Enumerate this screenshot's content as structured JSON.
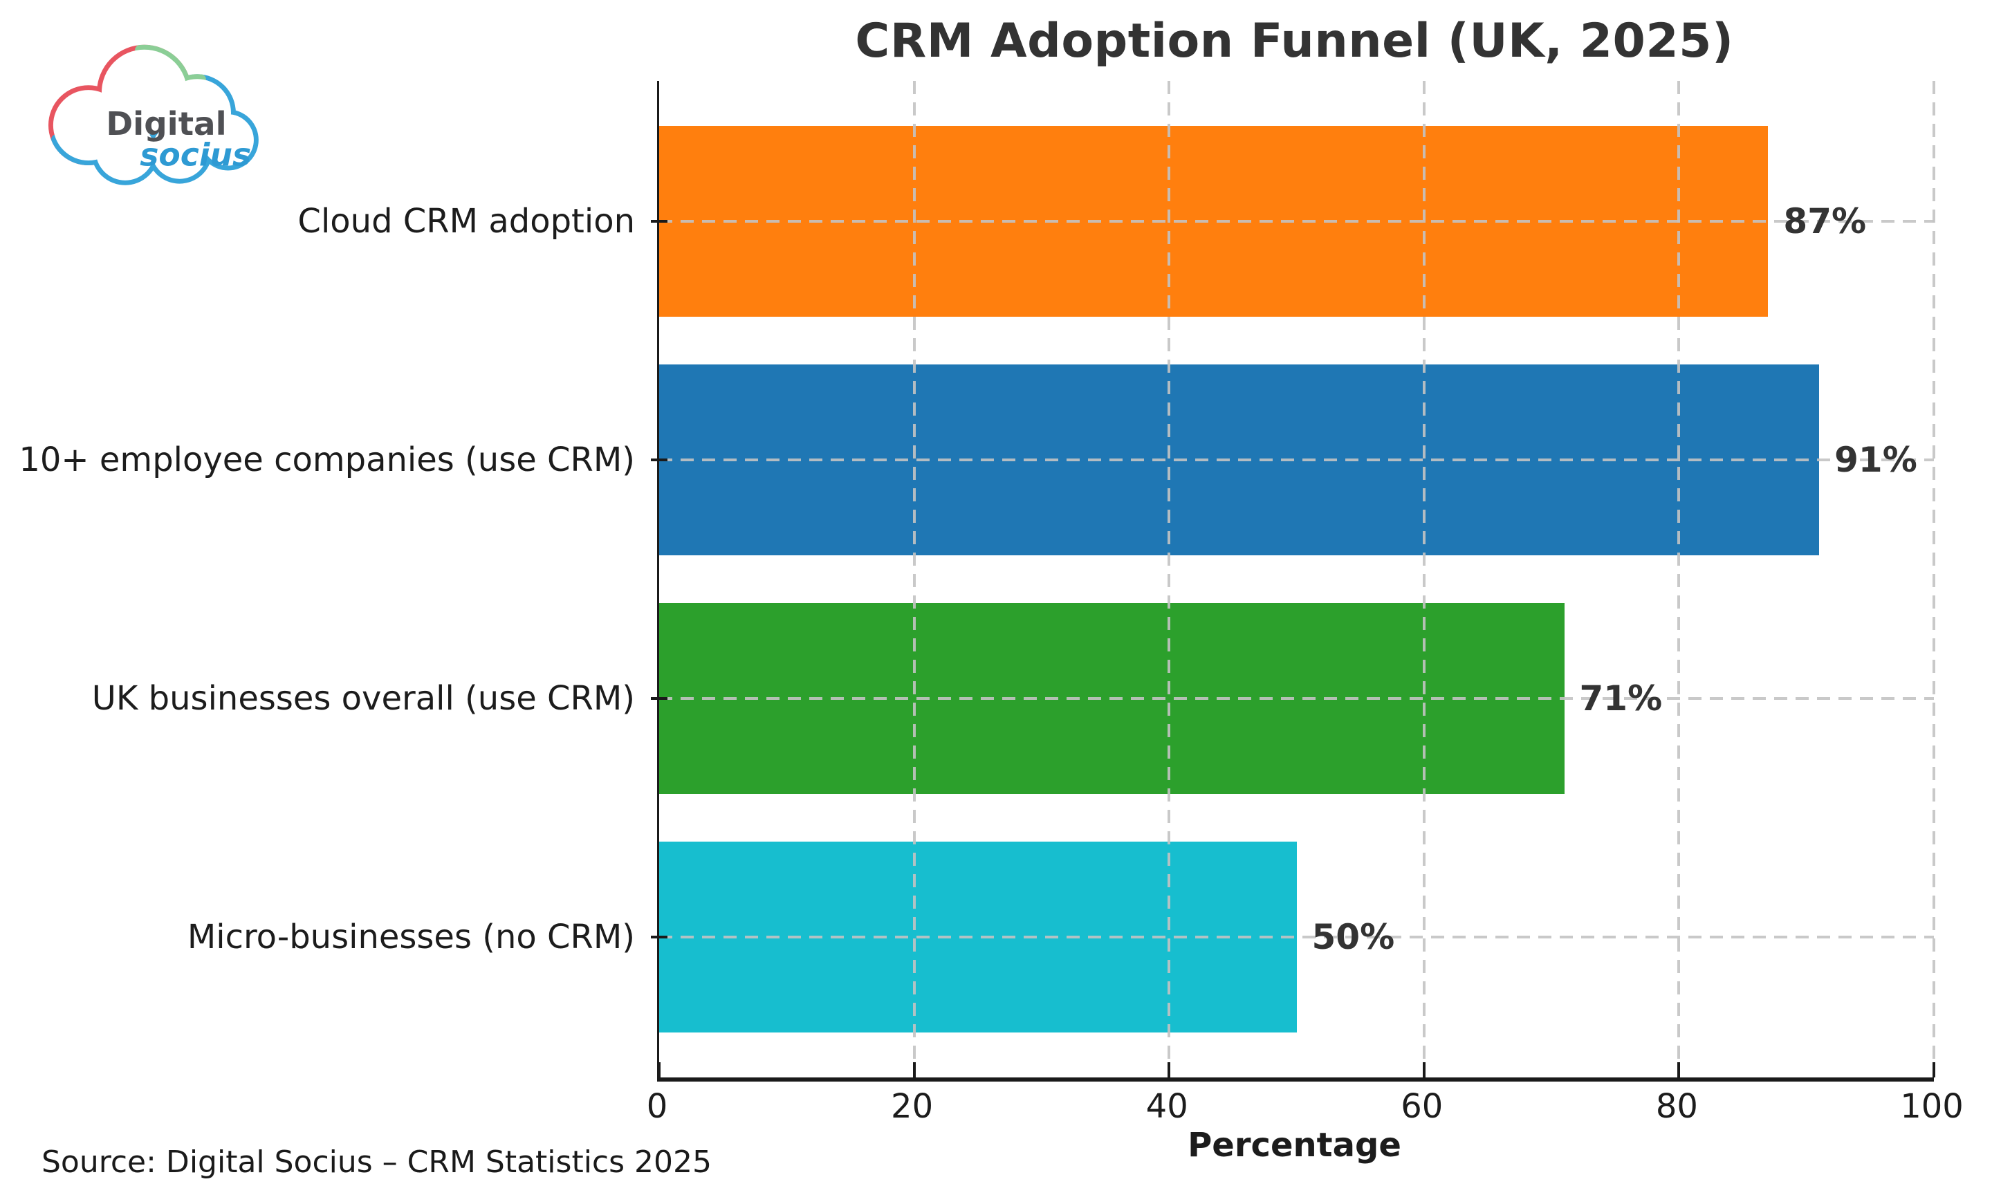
{
  "title": "CRM Adoption Funnel (UK, 2025)",
  "logo": {
    "text_primary": "Digital",
    "text_secondary": "socius",
    "colors": {
      "red": "#e85560",
      "green": "#8bce96",
      "blue": "#38a5da",
      "text_dark": "#4f5054",
      "text_blue": "#2e9ad3"
    }
  },
  "chart_data": {
    "type": "bar",
    "orientation": "horizontal",
    "title": "CRM Adoption Funnel (UK, 2025)",
    "categories": [
      "Cloud CRM adoption",
      "10+ employee companies (use CRM)",
      "UK businesses overall (use CRM)",
      "Micro-businesses (no CRM)"
    ],
    "values": [
      87,
      91,
      71,
      50
    ],
    "value_labels": [
      "87%",
      "91%",
      "71%",
      "50%"
    ],
    "bar_colors": [
      "#ff7f0e",
      "#1f77b4",
      "#2ca02c",
      "#17becf"
    ],
    "xlabel": "Percentage",
    "ylabel": "",
    "xlim": [
      0,
      100
    ],
    "x_ticks": [
      0,
      20,
      40,
      60,
      80,
      100
    ],
    "grid": "dashed gridlines on both axes, drawn above bars",
    "legend": "none"
  },
  "footer": {
    "source": "Source: Digital Socius – CRM Statistics 2025"
  },
  "colors": {
    "grid": "#c3c3c3",
    "axis": "#1a1a1a",
    "tick_text": "#1c1c1c",
    "value_text": "#333333",
    "title_text": "#333333",
    "background": "#ffffff"
  }
}
